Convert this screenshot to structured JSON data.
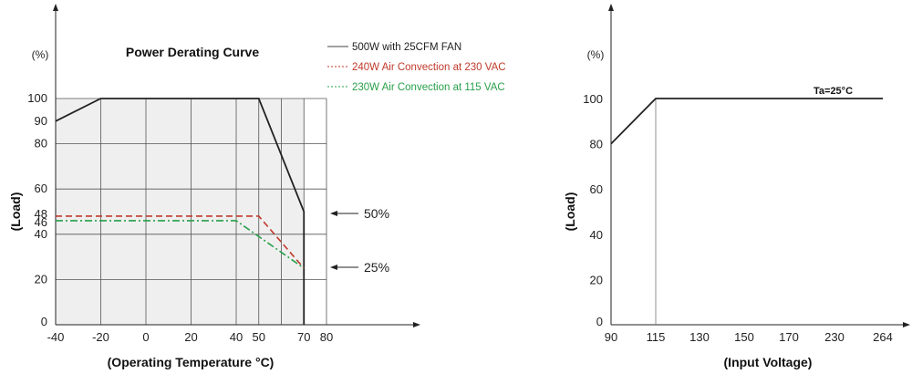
{
  "chart_data": [
    {
      "type": "line",
      "title": "Power Derating Curve",
      "xlabel": "(Operating Temperature °C)",
      "ylabel": "(Load)",
      "yunit": "(%)",
      "x_ticks": [
        "-40",
        "-20",
        "0",
        "20",
        "40",
        "50",
        "70",
        "80"
      ],
      "y_ticks": [
        "0",
        "20",
        "40",
        "46",
        "48",
        "60",
        "80",
        "90",
        "100"
      ],
      "xlim": [
        -40,
        80
      ],
      "ylim": [
        0,
        100
      ],
      "grid": true,
      "shaded_region": true,
      "legend_position": "top-right",
      "series": [
        {
          "name": "500W with 25CFM FAN",
          "color": "#222222",
          "dash": "solid",
          "x": [
            -40,
            -20,
            50,
            70,
            70
          ],
          "y": [
            90,
            100,
            100,
            50,
            0
          ]
        },
        {
          "name": "240W Air Convection at 230 VAC",
          "color": "#c0392b",
          "dash": "dashed",
          "x": [
            -40,
            50,
            70
          ],
          "y": [
            48,
            48,
            25
          ]
        },
        {
          "name": "230W Air Convection at 115 VAC",
          "color": "#27a04a",
          "dash": "dash-dot",
          "x": [
            -40,
            40,
            70
          ],
          "y": [
            46,
            46,
            25
          ]
        }
      ],
      "annotations": [
        {
          "text": "50%",
          "y": 50
        },
        {
          "text": "25%",
          "y": 25
        }
      ]
    },
    {
      "type": "line",
      "title": "",
      "xlabel": "(Input Voltage)",
      "ylabel": "(Load)",
      "yunit": "(%)",
      "x_ticks": [
        "90",
        "115",
        "130",
        "150",
        "170",
        "230",
        "264"
      ],
      "y_ticks": [
        "0",
        "20",
        "40",
        "60",
        "80",
        "100"
      ],
      "ylim": [
        0,
        100
      ],
      "grid": false,
      "series": [
        {
          "name": "",
          "color": "#222222",
          "dash": "solid",
          "x": [
            "90",
            "115",
            "264"
          ],
          "y": [
            80,
            100,
            100
          ]
        }
      ],
      "annotations": [
        {
          "text": "Ta=25°C"
        }
      ]
    }
  ]
}
